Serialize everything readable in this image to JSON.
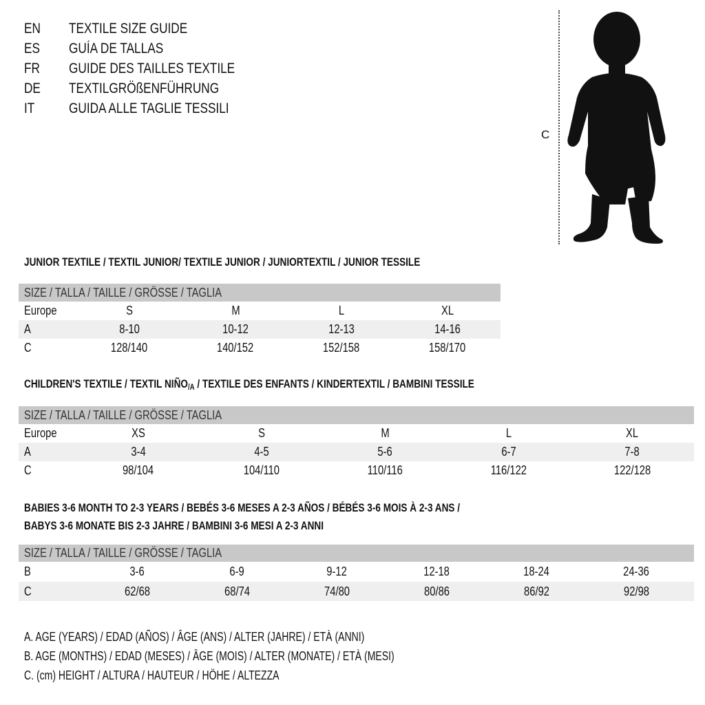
{
  "languages": [
    {
      "code": "EN",
      "title": "TEXTILE SIZE GUIDE"
    },
    {
      "code": "ES",
      "title": "GUÍA DE TALLAS"
    },
    {
      "code": "FR",
      "title": "GUIDE DES TAILLES TEXTILE"
    },
    {
      "code": "DE",
      "title": "TEXTILGRÖßENFÜHRUNG"
    },
    {
      "code": "IT",
      "title": "GUIDA ALLE TAGLIE TESSILI"
    }
  ],
  "figure": {
    "measure_label": "C",
    "icon": "child-silhouette"
  },
  "junior": {
    "title": "JUNIOR TEXTILE / TEXTIL JUNIOR/ TEXTILE JUNIOR / JUNIORTEXTIL / JUNIOR TESSILE",
    "header": "SIZE / TALLA / TAILLE / GRÖSSE / TAGLIA",
    "rows": [
      {
        "label": "Europe",
        "cells": [
          "S",
          "M",
          "L",
          "XL"
        ]
      },
      {
        "label": "A",
        "cells": [
          "8-10",
          "10-12",
          "12-13",
          "14-16"
        ]
      },
      {
        "label": "C",
        "cells": [
          "128/140",
          "140/152",
          "152/158",
          "158/170"
        ]
      }
    ]
  },
  "children": {
    "title": "CHILDREN'S TEXTILE / TEXTIL NIÑO",
    "title_suffix": "/A",
    "title_rest": " / TEXTILE DES ENFANTS / KINDERTEXTIL / BAMBINI TESSILE",
    "header": "SIZE / TALLA / TAILLE / GRÖSSE / TAGLIA",
    "rows": [
      {
        "label": "Europe",
        "cells": [
          "XS",
          "S",
          "M",
          "L",
          "XL"
        ]
      },
      {
        "label": "A",
        "cells": [
          "3-4",
          "4-5",
          "5-6",
          "6-7",
          "7-8"
        ]
      },
      {
        "label": "C",
        "cells": [
          "98/104",
          "104/110",
          "110/116",
          "116/122",
          "122/128"
        ]
      }
    ]
  },
  "babies": {
    "title_line1": "BABIES 3-6 MONTH TO 2-3 YEARS / BEBÉS 3-6 MESES A 2-3 AÑOS / BÉBÉS 3-6 MOIS À 2-3 ANS /",
    "title_line2": "BABYS 3-6 MONATE BIS 2-3 JAHRE / BAMBINI 3-6 MESI A 2-3 ANNI",
    "header": "SIZE / TALLA / TAILLE / GRÖSSE / TAGLIA",
    "rows": [
      {
        "label": "B",
        "cells": [
          "3-6",
          "6-9",
          "9-12",
          "12-18",
          "18-24",
          "24-36"
        ]
      },
      {
        "label": "C",
        "cells": [
          "62/68",
          "68/74",
          "74/80",
          "80/86",
          "86/92",
          "92/98"
        ]
      }
    ]
  },
  "legend": [
    "A. AGE (YEARS) / EDAD (AÑOS) / ÂGE (ANS) / ALTER (JAHRE) / ETÀ (ANNI)",
    "B. AGE (MONTHS) / EDAD (MESES) / ÂGE (MOIS) / ALTER (MONATE) / ETÀ (MESI)",
    "C. (cm) HEIGHT / ALTURA / HAUTEUR / HÖHE / ALTEZZA"
  ],
  "colors": {
    "header_bg": "#c8c8c8",
    "alt_row_bg": "#efefef",
    "text": "#111111"
  }
}
